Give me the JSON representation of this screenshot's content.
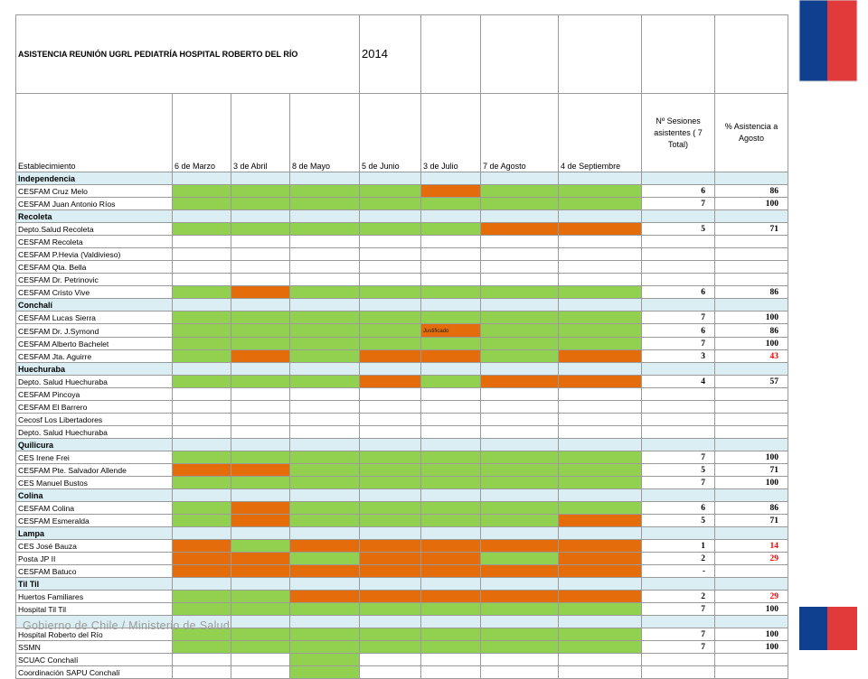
{
  "title": "ASISTENCIA REUNIÓN UGRL PEDIATRÍA HOSPITAL ROBERTO DEL RÍO",
  "year": "2014",
  "headers": {
    "establecimiento": "Establecimiento",
    "dates": [
      "6 de Marzo",
      "3 de Abril",
      "8 de Mayo",
      "5 de Junio",
      "3 de Julio",
      "7 de Agosto",
      "4 de Septiembre"
    ],
    "sessions": "Nº Sesiones asistentes ( 7 Total)",
    "percent": "% Asistencia a Agosto"
  },
  "rows": [
    {
      "type": "section",
      "label": "Independencia"
    },
    {
      "type": "data",
      "name": "CESFAM Cruz Melo",
      "cells": [
        "g",
        "g",
        "g",
        "g",
        "o",
        "g",
        "g"
      ],
      "sessions": "6",
      "pct": "86",
      "red": false
    },
    {
      "type": "data",
      "name": "CESFAM Juan Antonio Ríos",
      "cells": [
        "g",
        "g",
        "g",
        "g",
        "g",
        "g",
        "g"
      ],
      "sessions": "7",
      "pct": "100",
      "red": false
    },
    {
      "type": "section",
      "label": "Recoleta"
    },
    {
      "type": "data",
      "name": "Depto.Salud Recoleta",
      "cells": [
        "g",
        "g",
        "g",
        "g",
        "g",
        "o",
        "o"
      ],
      "sessions": "5",
      "pct": "71",
      "red": false
    },
    {
      "type": "data",
      "name": "CESFAM Recoleta",
      "cells": [
        "",
        "",
        "",
        "",
        "",
        "",
        ""
      ],
      "sessions": "",
      "pct": "",
      "red": false
    },
    {
      "type": "data",
      "name": "CESFAM P.Hevia (Valdivieso)",
      "cells": [
        "",
        "",
        "",
        "",
        "",
        "",
        ""
      ],
      "sessions": "",
      "pct": "",
      "red": false
    },
    {
      "type": "data",
      "name": "CESFAM Qta. Bella",
      "cells": [
        "",
        "",
        "",
        "",
        "",
        "",
        ""
      ],
      "sessions": "",
      "pct": "",
      "red": false
    },
    {
      "type": "data",
      "name": "CESFAM Dr. Petrinovic",
      "cells": [
        "",
        "",
        "",
        "",
        "",
        "",
        ""
      ],
      "sessions": "",
      "pct": "",
      "red": false
    },
    {
      "type": "data",
      "name": "CESFAM Cristo Vive",
      "cells": [
        "g",
        "o",
        "g",
        "g",
        "g",
        "g",
        "g"
      ],
      "sessions": "6",
      "pct": "86",
      "red": false
    },
    {
      "type": "section",
      "label": "Conchalí"
    },
    {
      "type": "data",
      "name": "CESFAM Lucas Sierra",
      "cells": [
        "g",
        "g",
        "g",
        "g",
        "g",
        "g",
        "g"
      ],
      "sessions": "7",
      "pct": "100",
      "red": false
    },
    {
      "type": "data",
      "name": "CESFAM Dr. J.Symond",
      "cells": [
        "g",
        "g",
        "g",
        "g",
        "o",
        "g",
        "g"
      ],
      "note": "Justificado",
      "sessions": "6",
      "pct": "86",
      "red": false
    },
    {
      "type": "data",
      "name": "CESFAM  Alberto Bachelet",
      "cells": [
        "g",
        "g",
        "g",
        "g",
        "g",
        "g",
        "g"
      ],
      "sessions": "7",
      "pct": "100",
      "red": false
    },
    {
      "type": "data",
      "name": "CESFAM Jta. Aguirre",
      "cells": [
        "g",
        "o",
        "g",
        "o",
        "o",
        "g",
        "o"
      ],
      "sessions": "3",
      "pct": "43",
      "red": true
    },
    {
      "type": "section",
      "label": "Huechuraba"
    },
    {
      "type": "data",
      "name": "Depto. Salud Huechuraba",
      "cells": [
        "g",
        "g",
        "g",
        "o",
        "g",
        "o",
        "o"
      ],
      "sessions": "4",
      "pct": "57",
      "red": false
    },
    {
      "type": "data",
      "name": "CESFAM Pincoya",
      "cells": [
        "",
        "",
        "",
        "",
        "",
        "",
        ""
      ],
      "sessions": "",
      "pct": "",
      "red": false
    },
    {
      "type": "data",
      "name": "CESFAM El Barrero",
      "cells": [
        "",
        "",
        "",
        "",
        "",
        "",
        ""
      ],
      "sessions": "",
      "pct": "",
      "red": false
    },
    {
      "type": "data",
      "name": "Cecosf Los Libertadores",
      "cells": [
        "",
        "",
        "",
        "",
        "",
        "",
        ""
      ],
      "sessions": "",
      "pct": "",
      "red": false
    },
    {
      "type": "data",
      "name": "Depto. Salud Huechuraba",
      "cells": [
        "",
        "",
        "",
        "",
        "",
        "",
        ""
      ],
      "sessions": "",
      "pct": "",
      "red": false
    },
    {
      "type": "section",
      "label": "Quilicura"
    },
    {
      "type": "data",
      "name": "CES Irene Frei",
      "cells": [
        "g",
        "g",
        "g",
        "g",
        "g",
        "g",
        "g"
      ],
      "sessions": "7",
      "pct": "100",
      "red": false
    },
    {
      "type": "data",
      "name": "CESFAM Pte. Salvador Allende",
      "cells": [
        "o",
        "o",
        "g",
        "g",
        "g",
        "g",
        "g"
      ],
      "sessions": "5",
      "pct": "71",
      "red": false
    },
    {
      "type": "data",
      "name": "CES Manuel Bustos",
      "cells": [
        "g",
        "g",
        "g",
        "g",
        "g",
        "g",
        "g"
      ],
      "sessions": "7",
      "pct": "100",
      "red": false
    },
    {
      "type": "section",
      "label": "Colina"
    },
    {
      "type": "data",
      "name": "CESFAM Colina",
      "cells": [
        "g",
        "o",
        "g",
        "g",
        "g",
        "g",
        "g"
      ],
      "sessions": "6",
      "pct": "86",
      "red": false
    },
    {
      "type": "data",
      "name": "CESFAM Esmeralda",
      "cells": [
        "g",
        "o",
        "g",
        "g",
        "g",
        "g",
        "o"
      ],
      "sessions": "5",
      "pct": "71",
      "red": false
    },
    {
      "type": "section",
      "label": "Lampa"
    },
    {
      "type": "data",
      "name": "CES José Bauza",
      "cells": [
        "o",
        "g",
        "o",
        "o",
        "o",
        "o",
        "o"
      ],
      "sessions": "1",
      "pct": "14",
      "red": true
    },
    {
      "type": "data",
      "name": "Posta JP II",
      "cells": [
        "o",
        "o",
        "g",
        "o",
        "o",
        "g",
        "o"
      ],
      "sessions": "2",
      "pct": "29",
      "red": true
    },
    {
      "type": "data",
      "name": "CESFAM Batuco",
      "cells": [
        "o",
        "o",
        "o",
        "o",
        "o",
        "o",
        "o"
      ],
      "sessions": "-",
      "pct": "",
      "red": false
    },
    {
      "type": "section",
      "label": "Til Til"
    },
    {
      "type": "data",
      "name": "Huertos Familiares",
      "cells": [
        "g",
        "g",
        "o",
        "o",
        "o",
        "o",
        "o"
      ],
      "sessions": "2",
      "pct": "29",
      "red": true
    },
    {
      "type": "data",
      "name": "Hospital Til Til",
      "cells": [
        "g",
        "g",
        "g",
        "g",
        "g",
        "g",
        "g"
      ],
      "sessions": "7",
      "pct": "100",
      "red": false
    },
    {
      "type": "section",
      "label": ""
    },
    {
      "type": "data",
      "name": "Hospital Roberto del Río",
      "cells": [
        "g",
        "g",
        "g",
        "g",
        "g",
        "g",
        "g"
      ],
      "sessions": "7",
      "pct": "100",
      "red": false
    },
    {
      "type": "data",
      "name": "SSMN",
      "cells": [
        "g",
        "g",
        "g",
        "g",
        "g",
        "g",
        "g"
      ],
      "sessions": "7",
      "pct": "100",
      "red": false
    },
    {
      "type": "data",
      "name": "SCUAC Conchalí",
      "cells": [
        "",
        "",
        "g",
        "",
        "",
        "",
        ""
      ],
      "sessions": "",
      "pct": "",
      "red": false
    },
    {
      "type": "data",
      "name": "Coordinación SAPU Conchalí",
      "cells": [
        "",
        "",
        "g",
        "",
        "",
        "",
        ""
      ],
      "sessions": "",
      "pct": "",
      "red": false
    }
  ],
  "colors": {
    "attended": "#92d050",
    "absent": "#e46c0a",
    "section": "#daeef3",
    "flag_blue": "#0f3f8f",
    "flag_red": "#e23a3a"
  },
  "footer": "Gobierno de Chile / Ministerio de Salud"
}
